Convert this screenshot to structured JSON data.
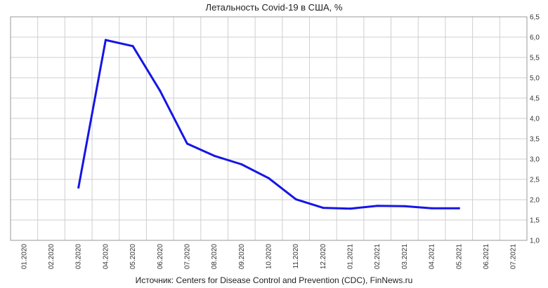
{
  "chart_data": {
    "type": "line",
    "title": "Летальность Covid-19 в США, %",
    "source": "Источник: Centers for Disease Control and Prevention (CDC), FinNews.ru",
    "categories": [
      "01.2020",
      "02.2020",
      "03.2020",
      "04.2020",
      "05.2020",
      "06.2020",
      "07.2020",
      "08.2020",
      "09.2020",
      "10.2020",
      "11.2020",
      "12.2020",
      "01.2021",
      "02.2021",
      "03.2021",
      "04.2021",
      "05.2021",
      "06.2021",
      "07.2021"
    ],
    "y_ticks": [
      "1,0",
      "1,5",
      "2,0",
      "2,5",
      "3,0",
      "3,5",
      "4,0",
      "4,5",
      "5,0",
      "5,5",
      "6,0",
      "6,5"
    ],
    "ylim": [
      1.0,
      6.5
    ],
    "y_axis_position": "right",
    "grid": true,
    "series": [
      {
        "color": "#1515e6",
        "x": [
          "03.2020",
          "04.2020",
          "05.2020",
          "06.2020",
          "07.2020",
          "08.2020",
          "09.2020",
          "10.2020",
          "11.2020",
          "12.2020",
          "01.2021",
          "02.2021",
          "03.2021",
          "04.2021",
          "05.2021"
        ],
        "values": [
          2.3,
          5.93,
          5.78,
          4.68,
          3.38,
          3.08,
          2.87,
          2.53,
          2.01,
          1.8,
          1.78,
          1.85,
          1.84,
          1.79,
          1.79
        ]
      }
    ]
  }
}
